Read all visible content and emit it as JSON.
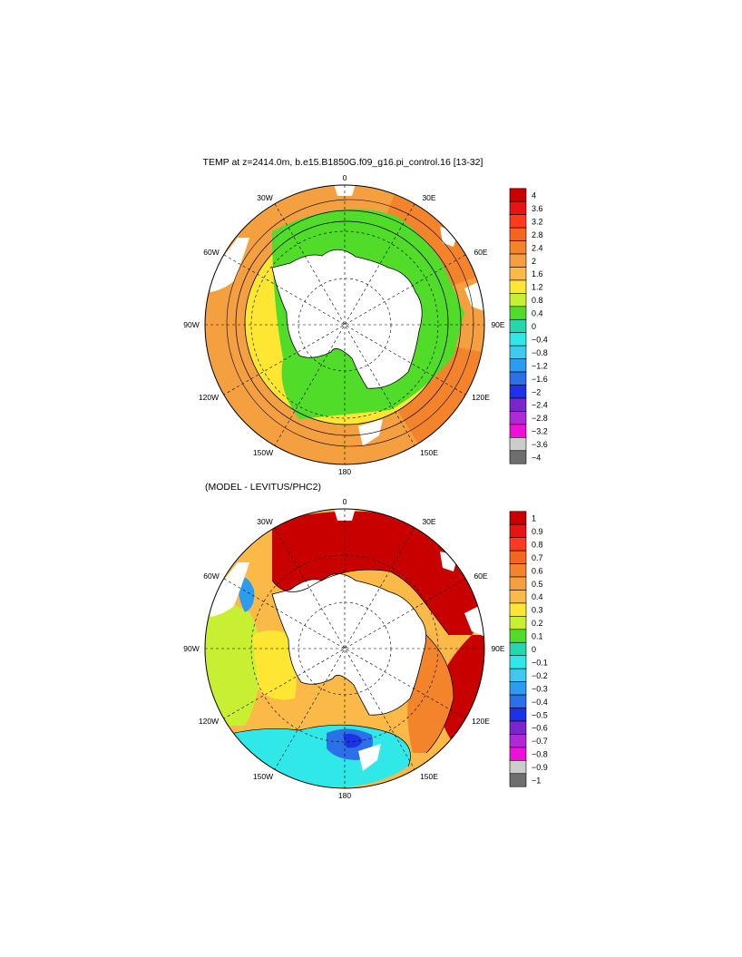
{
  "top_panel": {
    "title": "TEMP at z=2414.0m, b.e15.B1850G.f09_g16.pi_control.16 [13-32]",
    "lon_labels": {
      "n": "0",
      "ne": "30E",
      "e1": "60E",
      "e": "90E",
      "se1": "120E",
      "se": "150E",
      "s": "180",
      "sw": "150W",
      "w1": "120W",
      "w": "90W",
      "nw1": "60W",
      "nw": "30W"
    },
    "colorbar": {
      "labels": [
        "4",
        "3.6",
        "3.2",
        "2.8",
        "2.4",
        "2",
        "1.6",
        "1.2",
        "0.8",
        "0.4",
        "0",
        "−0.4",
        "−0.8",
        "−1.2",
        "−1.6",
        "−2",
        "−2.4",
        "−2.8",
        "−3.2",
        "−3.6",
        "−4"
      ],
      "colors": [
        "#c80000",
        "#e81414",
        "#ff3a1e",
        "#f4661e",
        "#f3842c",
        "#f5a040",
        "#fbba48",
        "#ffe632",
        "#c8f032",
        "#50dc28",
        "#24d8ae",
        "#30e8e8",
        "#3ccaf0",
        "#2c9cf0",
        "#2c70e8",
        "#1c32e6",
        "#7a26cc",
        "#b028d8",
        "#ee10d8",
        "#cccccc",
        "#6e6e6e"
      ]
    }
  },
  "bottom_panel": {
    "title": "(MODEL - LEVITUS/PHC2)",
    "lon_labels": {
      "n": "0",
      "ne": "30E",
      "e1": "60E",
      "e": "90E",
      "se1": "120E",
      "se": "150E",
      "s": "180",
      "sw": "150W",
      "w1": "120W",
      "w": "90W",
      "nw1": "60W",
      "nw": "30W"
    },
    "colorbar": {
      "labels": [
        "1",
        "0.9",
        "0.8",
        "0.7",
        "0.6",
        "0.5",
        "0.4",
        "0.3",
        "0.2",
        "0.1",
        "0",
        "−0.1",
        "−0.2",
        "−0.3",
        "−0.4",
        "−0.5",
        "−0.6",
        "−0.7",
        "−0.8",
        "−0.9",
        "−1"
      ],
      "colors": [
        "#c80000",
        "#e81414",
        "#ff3a1e",
        "#f4661e",
        "#f3842c",
        "#f5a040",
        "#fbba48",
        "#ffe632",
        "#c8f032",
        "#50dc28",
        "#24d8ae",
        "#30e8e8",
        "#3ccaf0",
        "#2c9cf0",
        "#2c70e8",
        "#1c32e6",
        "#7a26cc",
        "#b028d8",
        "#ee10d8",
        "#cccccc",
        "#6e6e6e"
      ]
    }
  }
}
